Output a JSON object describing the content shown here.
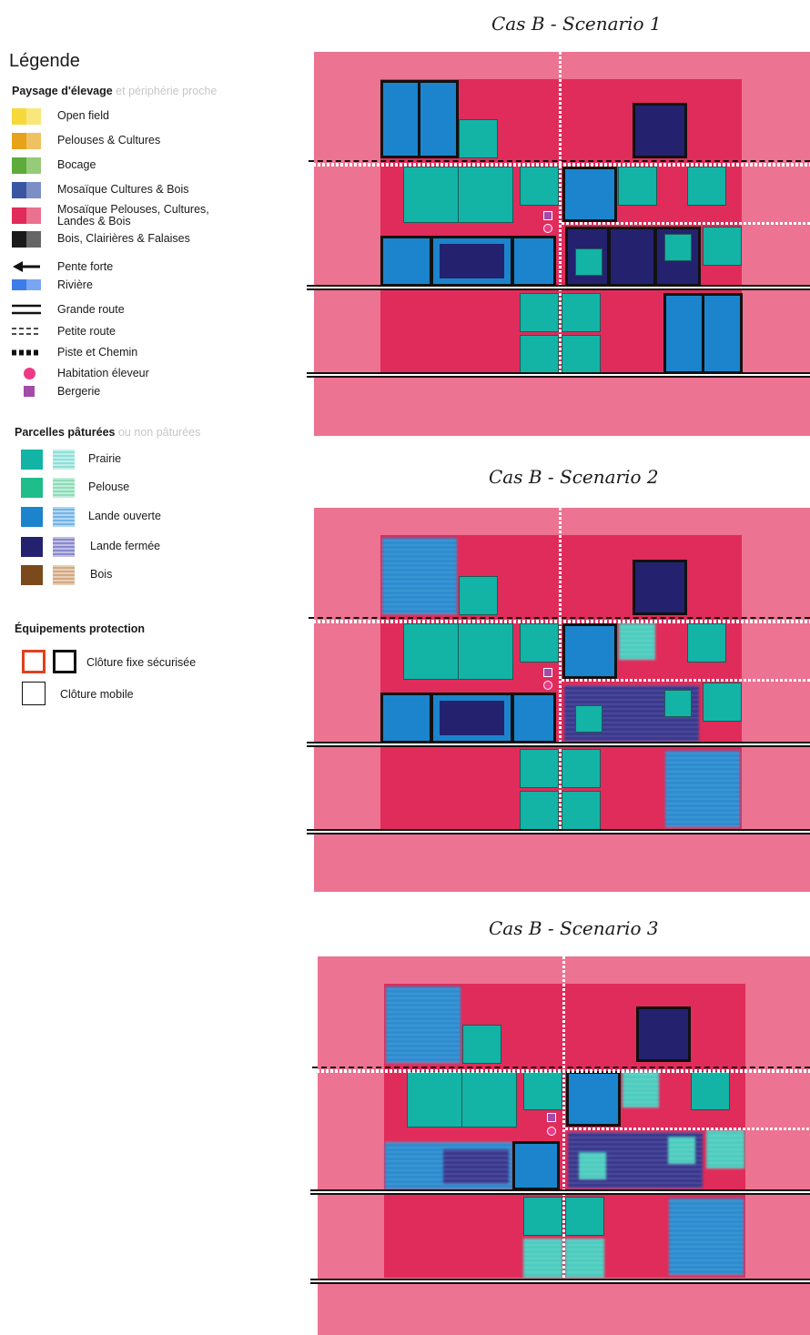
{
  "legend": {
    "title": "Légende",
    "landscape_heading": "Paysage d'élevage",
    "landscape_heading_muted": "et périphérie proche",
    "landscape_items": [
      {
        "label": "Open field",
        "colors": [
          "#f7d83b",
          "#f9e77c"
        ]
      },
      {
        "label": "Pelouses & Cultures",
        "colors": [
          "#e8a21a",
          "#f0c160"
        ]
      },
      {
        "label": "Bocage",
        "colors": [
          "#5cab3b",
          "#96cb79"
        ]
      },
      {
        "label": "Mosaïque Cultures & Bois",
        "colors": [
          "#3a56a3",
          "#7b8fc6"
        ]
      },
      {
        "label_line1": "Mosaïque Pelouses, Cultures,",
        "label_line2": "Landes & Bois",
        "colors": [
          "#e02c5a",
          "#ec7090"
        ]
      },
      {
        "label": "Bois, Clairières & Falaises",
        "colors": [
          "#1a1a1a",
          "#666666"
        ]
      }
    ],
    "symbols": [
      {
        "label": "Pente forte",
        "icon": "arrow-left-icon"
      },
      {
        "label": "Rivière",
        "icon": "river-icon",
        "colors": [
          "#3d7be8",
          "#79a6f2"
        ]
      },
      {
        "label": "Grande route",
        "icon": "double-line-icon"
      },
      {
        "label": "Petite route",
        "icon": "dashed-line-icon"
      },
      {
        "label": "Piste et Chemin",
        "icon": "dotted-line-icon"
      },
      {
        "label": "Habitation éleveur",
        "icon": "circle-icon",
        "color": "#ec3a86"
      },
      {
        "label": "Bergerie",
        "icon": "square-icon",
        "color": "#a24ba8"
      }
    ],
    "parcels_heading": "Parcelles pâturées",
    "parcels_heading_muted": "ou non pâturées",
    "parcels": [
      {
        "label": "Prairie",
        "color": "#13b3a6"
      },
      {
        "label": "Pelouse",
        "color": "#1fbd8a"
      },
      {
        "label": "Lande ouverte",
        "color": "#1c84cc"
      },
      {
        "label": "Lande fermée",
        "color": "#24226e"
      },
      {
        "label": "Bois",
        "color": "#7a4a1c"
      }
    ],
    "equip_heading": "Équipements protection",
    "equipments": [
      {
        "label": "Clôture fixe sécurisée"
      },
      {
        "label": "Clôture mobile"
      }
    ]
  },
  "maps": [
    {
      "title": "Cas B - Scenario 1"
    },
    {
      "title": "Cas B - Scenario 2"
    },
    {
      "title": "Cas B - Scenario 3"
    }
  ],
  "colors": {
    "outer": "#ec7391",
    "inner": "#e02c5a",
    "prairie": "#13b3a6",
    "lande_ouverte": "#1c84cc",
    "lande_fermee": "#24226e"
  }
}
